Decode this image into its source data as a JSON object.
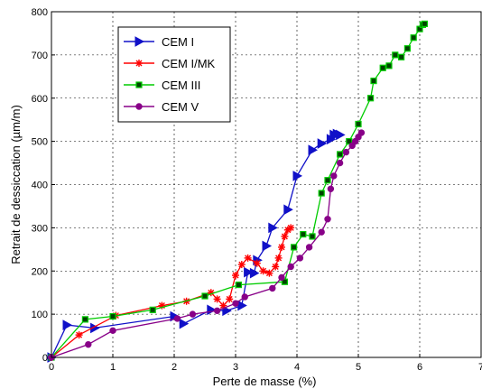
{
  "chart_data": {
    "type": "line",
    "xlabel": "Perte de masse (%)",
    "ylabel": "Retrait de dessiccation (µm/m)",
    "xlim": [
      0,
      7
    ],
    "ylim": [
      0,
      800
    ],
    "x_ticks": [
      "0",
      "1",
      "2",
      "3",
      "4",
      "5",
      "6",
      "7"
    ],
    "y_ticks": [
      "0",
      "100",
      "200",
      "300",
      "400",
      "500",
      "600",
      "700",
      "800"
    ],
    "grid": true,
    "legend_position": "top-left",
    "series": [
      {
        "name": "CEM I",
        "color": "#1010c8",
        "marker": "triangle-right",
        "points": [
          [
            0,
            0
          ],
          [
            0.25,
            75
          ],
          [
            0.7,
            68
          ],
          [
            2.0,
            95
          ],
          [
            2.15,
            78
          ],
          [
            2.6,
            110
          ],
          [
            2.85,
            108
          ],
          [
            3.1,
            120
          ],
          [
            3.2,
            197
          ],
          [
            3.3,
            195
          ],
          [
            3.35,
            225
          ],
          [
            3.5,
            258
          ],
          [
            3.6,
            300
          ],
          [
            3.85,
            342
          ],
          [
            4.0,
            420
          ],
          [
            4.25,
            480
          ],
          [
            4.4,
            495
          ],
          [
            4.55,
            505
          ],
          [
            4.6,
            515
          ],
          [
            4.65,
            517
          ],
          [
            4.7,
            515
          ]
        ]
      },
      {
        "name": "CEM I/MK",
        "color": "#ff0000",
        "marker": "star",
        "points": [
          [
            0,
            0
          ],
          [
            0.45,
            52
          ],
          [
            1.05,
            97
          ],
          [
            1.8,
            120
          ],
          [
            2.2,
            130
          ],
          [
            2.6,
            150
          ],
          [
            2.7,
            135
          ],
          [
            2.8,
            120
          ],
          [
            2.9,
            135
          ],
          [
            3.0,
            190
          ],
          [
            3.1,
            215
          ],
          [
            3.2,
            230
          ],
          [
            3.35,
            218
          ],
          [
            3.45,
            200
          ],
          [
            3.55,
            195
          ],
          [
            3.65,
            210
          ],
          [
            3.7,
            230
          ],
          [
            3.75,
            255
          ],
          [
            3.8,
            280
          ],
          [
            3.85,
            295
          ],
          [
            3.9,
            300
          ]
        ]
      },
      {
        "name": "CEM III",
        "color": "#00cc00",
        "marker": "square",
        "points": [
          [
            0,
            0
          ],
          [
            0.55,
            88
          ],
          [
            1.0,
            95
          ],
          [
            1.65,
            110
          ],
          [
            2.5,
            142
          ],
          [
            3.05,
            168
          ],
          [
            3.8,
            175
          ],
          [
            3.95,
            255
          ],
          [
            4.1,
            285
          ],
          [
            4.25,
            280
          ],
          [
            4.4,
            380
          ],
          [
            4.5,
            410
          ],
          [
            4.7,
            470
          ],
          [
            4.85,
            500
          ],
          [
            5.0,
            540
          ],
          [
            5.2,
            600
          ],
          [
            5.25,
            640
          ],
          [
            5.4,
            670
          ],
          [
            5.5,
            675
          ],
          [
            5.6,
            700
          ],
          [
            5.7,
            695
          ],
          [
            5.8,
            715
          ],
          [
            5.9,
            740
          ],
          [
            6.0,
            760
          ],
          [
            6.05,
            770
          ],
          [
            6.08,
            772
          ]
        ]
      },
      {
        "name": "CEM V",
        "color": "#880088",
        "marker": "circle",
        "points": [
          [
            0,
            0
          ],
          [
            0.6,
            30
          ],
          [
            1.0,
            62
          ],
          [
            2.05,
            90
          ],
          [
            2.3,
            100
          ],
          [
            2.7,
            108
          ],
          [
            3.0,
            125
          ],
          [
            3.15,
            140
          ],
          [
            3.6,
            160
          ],
          [
            3.75,
            185
          ],
          [
            3.9,
            210
          ],
          [
            4.05,
            230
          ],
          [
            4.2,
            255
          ],
          [
            4.4,
            290
          ],
          [
            4.5,
            320
          ],
          [
            4.55,
            390
          ],
          [
            4.6,
            420
          ],
          [
            4.7,
            450
          ],
          [
            4.8,
            475
          ],
          [
            4.9,
            490
          ],
          [
            4.95,
            500
          ],
          [
            5.0,
            510
          ],
          [
            5.05,
            520
          ]
        ]
      }
    ]
  }
}
